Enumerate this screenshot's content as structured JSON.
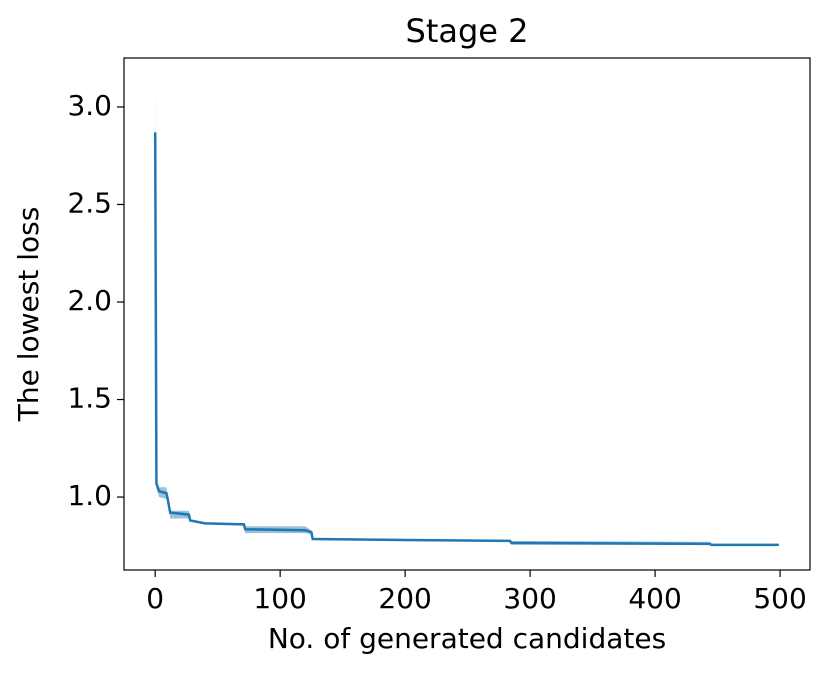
{
  "chart_data": {
    "type": "line",
    "title": "Stage 2",
    "xlabel": "No. of generated candidates",
    "ylabel": "The lowest loss",
    "x": [
      0,
      1,
      3,
      9,
      10,
      12,
      27,
      28,
      40,
      71,
      72,
      120,
      125,
      126,
      200,
      284,
      285,
      444,
      445,
      499
    ],
    "series": [
      {
        "color": "#1f77b4",
        "values": [
          2.87,
          1.07,
          1.03,
          1.02,
          0.99,
          0.92,
          0.91,
          0.88,
          0.865,
          0.86,
          0.835,
          0.83,
          0.82,
          0.785,
          0.78,
          0.775,
          0.765,
          0.76,
          0.755,
          0.755
        ],
        "upper": [
          3.15,
          1.08,
          1.05,
          1.05,
          1.0,
          0.93,
          0.93,
          0.885,
          0.87,
          0.865,
          0.85,
          0.85,
          0.83,
          0.79,
          0.785,
          0.78,
          0.775,
          0.77,
          0.76,
          0.76
        ],
        "lower": [
          2.6,
          1.06,
          1.0,
          0.99,
          0.98,
          0.89,
          0.89,
          0.875,
          0.86,
          0.855,
          0.815,
          0.815,
          0.81,
          0.78,
          0.775,
          0.77,
          0.755,
          0.755,
          0.75,
          0.75
        ]
      }
    ],
    "xlim": [
      -24.95,
      523.95
    ],
    "xticks": [
      0,
      100,
      200,
      300,
      400,
      500
    ],
    "ylim": [
      0.626,
      3.251
    ],
    "yticks": [
      {
        "value": 1,
        "label": "1.0"
      },
      1.5,
      {
        "value": 2,
        "label": "2.0"
      },
      2.5,
      {
        "value": 3,
        "label": "3.0"
      }
    ],
    "grid": false
  }
}
